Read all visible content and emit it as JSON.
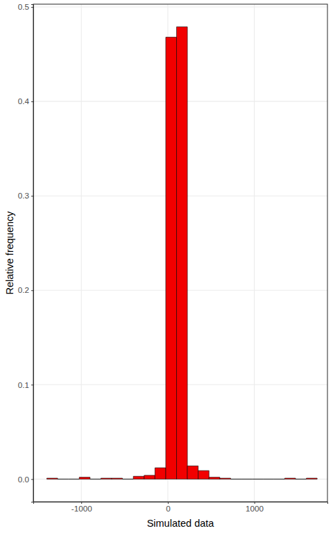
{
  "chart_data": {
    "type": "histogram",
    "x_label": "Simulated data",
    "y_label": "Relative frequency",
    "bins": [
      -1399,
      -1274,
      -1149,
      -1024,
      -899,
      -774,
      -649,
      -524,
      -399,
      -274,
      -149,
      -24,
      101,
      226,
      351,
      476,
      601,
      726,
      851,
      976,
      1101,
      1226,
      1351,
      1476,
      1601,
      1726
    ],
    "values": [
      0.001,
      0,
      0,
      0.002,
      0,
      0.001,
      0.001,
      0,
      0.003,
      0.004,
      0.012,
      0.468,
      0.479,
      0.014,
      0.009,
      0.002,
      0.001,
      0,
      0,
      0,
      0,
      0,
      0.001,
      0,
      0.001
    ],
    "color": "#f20000",
    "xlim": [
      -1555,
      1845
    ],
    "xticks": [
      -1000,
      0,
      1000
    ],
    "ylim": [
      -0.024,
      0.503
    ],
    "yticks": [
      {
        "value": 0,
        "label": "0.0"
      },
      {
        "value": 0.1,
        "label": "0.1"
      },
      {
        "value": 0.2,
        "label": "0.2"
      },
      {
        "value": 0.3,
        "label": "0.3"
      },
      {
        "value": 0.4,
        "label": "0.4"
      },
      {
        "value": 0.5,
        "label": "0.5"
      }
    ],
    "grid": true
  }
}
